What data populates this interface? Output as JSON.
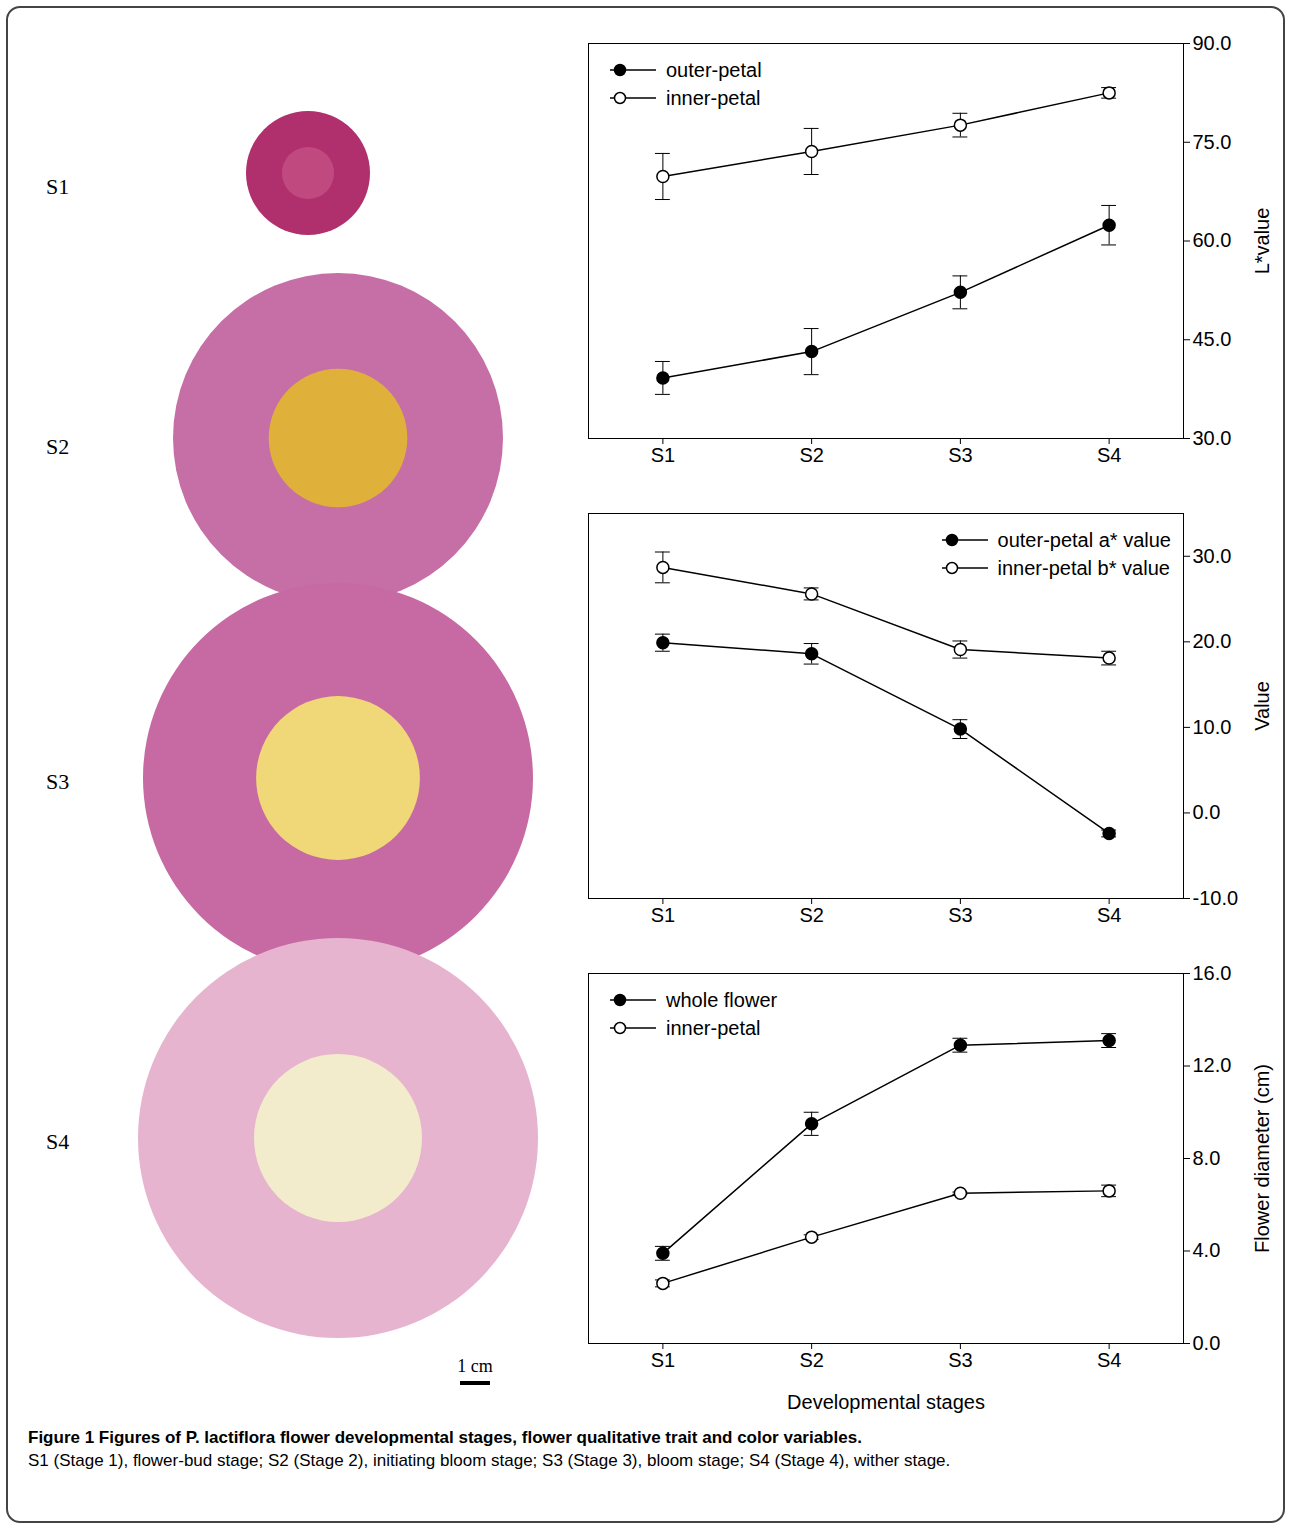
{
  "chart_data": [
    {
      "type": "line",
      "categories": [
        "S1",
        "S2",
        "S3",
        "S4"
      ],
      "xlabel": null,
      "ylabel": "L*value",
      "ylim": [
        30,
        90
      ],
      "yticks": [
        {
          "value": 30,
          "label": "30.0"
        },
        {
          "value": 45,
          "label": "45.0"
        },
        {
          "value": 60,
          "label": "60.0"
        },
        {
          "value": 75,
          "label": "75.0"
        },
        {
          "value": 90,
          "label": "90.0"
        }
      ],
      "legend": "upper left",
      "grid": false,
      "series": [
        {
          "name": "outer-petal",
          "color": "#000000",
          "marker": "filled_circle",
          "values": [
            39.2,
            43.2,
            52.2,
            62.4
          ],
          "errors": [
            2.5,
            3.5,
            2.5,
            3.0
          ]
        },
        {
          "name": "inner-petal",
          "color": "#000000",
          "marker": "open_circle",
          "values": [
            69.8,
            73.6,
            77.6,
            82.5
          ],
          "errors": [
            3.5,
            3.5,
            1.8,
            0.8
          ]
        }
      ]
    },
    {
      "type": "line",
      "categories": [
        "S1",
        "S2",
        "S3",
        "S4"
      ],
      "xlabel": null,
      "ylabel": "Value",
      "ylim": [
        -10,
        35
      ],
      "yticks": [
        {
          "value": -10,
          "label": "-10.0"
        },
        {
          "value": 0,
          "label": "0.0"
        },
        {
          "value": 10,
          "label": "10.0"
        },
        {
          "value": 20,
          "label": "20.0"
        },
        {
          "value": 30,
          "label": "30.0"
        }
      ],
      "legend": "upper right",
      "grid": false,
      "series": [
        {
          "name": "outer-petal a* value",
          "color": "#000000",
          "marker": "filled_circle",
          "values": [
            19.9,
            18.6,
            9.8,
            -2.4
          ],
          "errors": [
            1.0,
            1.2,
            1.1,
            0.4
          ]
        },
        {
          "name": "inner-petal b* value",
          "color": "#000000",
          "marker": "open_circle",
          "values": [
            28.7,
            25.6,
            19.1,
            18.1
          ],
          "errors": [
            1.8,
            0.7,
            1.0,
            0.8
          ]
        }
      ]
    },
    {
      "type": "line",
      "categories": [
        "S1",
        "S2",
        "S3",
        "S4"
      ],
      "xlabel": "Developmental stages",
      "ylabel": "Flower diameter (cm)",
      "ylim": [
        0,
        16
      ],
      "yticks": [
        {
          "value": 0,
          "label": "0.0"
        },
        {
          "value": 4,
          "label": "4.0"
        },
        {
          "value": 8,
          "label": "8.0"
        },
        {
          "value": 12,
          "label": "12.0"
        },
        {
          "value": 16,
          "label": "16.0"
        }
      ],
      "legend": "upper left",
      "grid": false,
      "series": [
        {
          "name": "whole flower",
          "color": "#000000",
          "marker": "filled_circle",
          "values": [
            3.9,
            9.5,
            12.9,
            13.1
          ],
          "errors": [
            0.3,
            0.5,
            0.3,
            0.3
          ]
        },
        {
          "name": "inner-petal",
          "color": "#000000",
          "marker": "open_circle",
          "values": [
            2.6,
            4.6,
            6.5,
            6.6
          ],
          "errors": [
            0.15,
            0.1,
            0.05,
            0.25
          ]
        }
      ]
    }
  ],
  "photos": {
    "stage_labels": [
      "S1",
      "S2",
      "S3",
      "S4"
    ],
    "scale_bar": "1 cm"
  },
  "caption_title": "Figure 1 Figures of P. lactiflora flower developmental stages, flower qualitative trait and color variables.",
  "caption": "S1 (Stage 1), flower-bud stage; S2 (Stage 2), initiating bloom stage; S3 (Stage 3), bloom stage; S4 (Stage 4), wither stage."
}
